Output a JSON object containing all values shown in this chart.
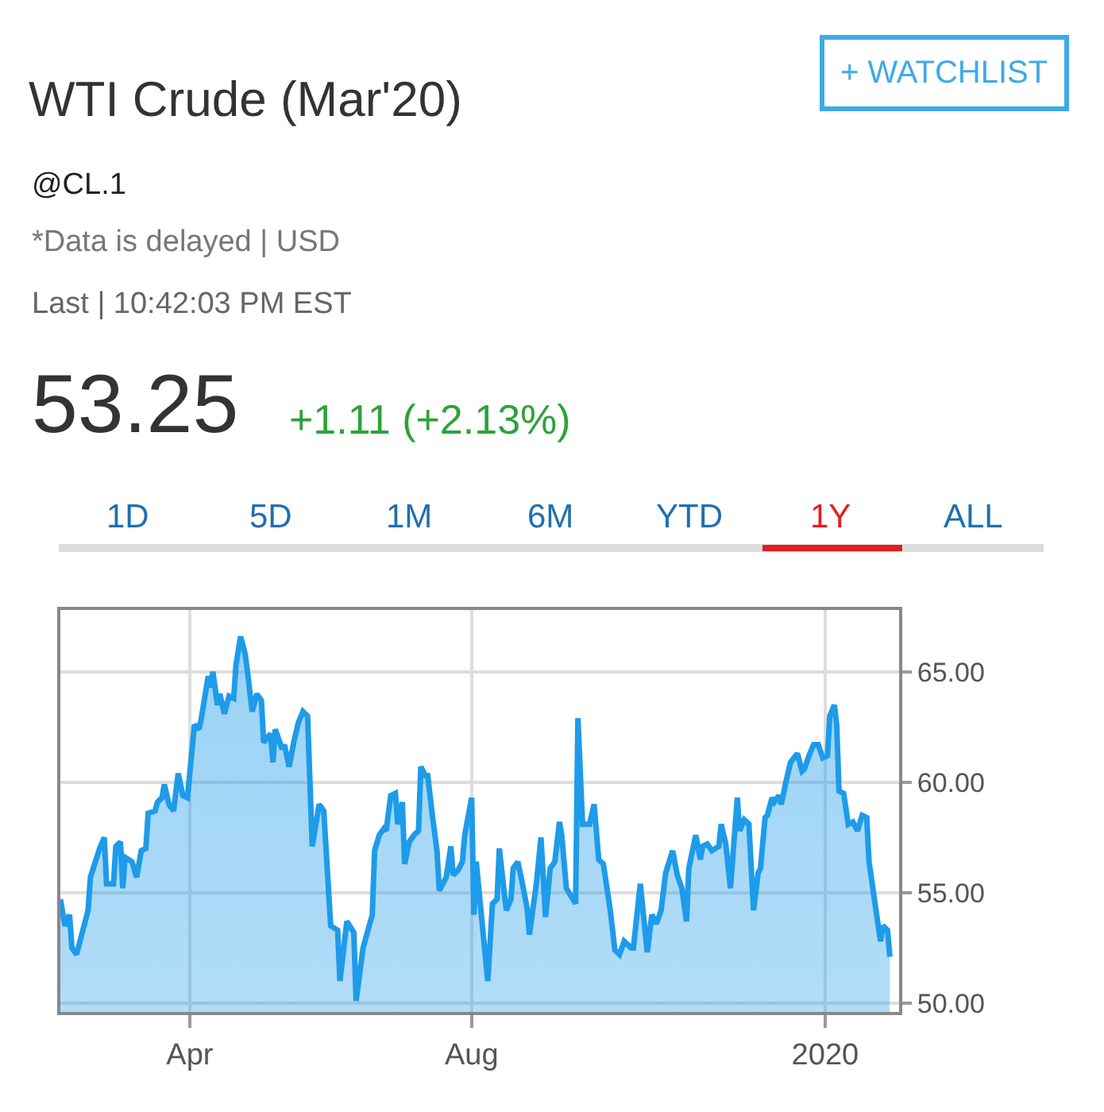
{
  "chart_data": {
    "type": "area",
    "title": "WTI Crude (Mar'20)",
    "annotations": [
      "+ WATCHLIST",
      "@CL.1",
      "*Data is delayed | USD",
      "Last | 10:42:03 PM EST",
      "53.25",
      "+1.11 (+2.13%)",
      "1D",
      "5D",
      "1M",
      "6M",
      "YTD",
      "1Y",
      "ALL"
    ],
    "x": [
      "2019-02-04",
      "2019-02-06",
      "2019-02-08",
      "2019-02-09",
      "2019-02-11",
      "2019-02-16",
      "2019-02-17",
      "2019-02-21",
      "2019-02-23",
      "2019-02-24",
      "2019-02-27",
      "2019-02-28",
      "2019-03-02",
      "2019-03-03",
      "2019-03-04",
      "2019-03-07",
      "2019-03-09",
      "2019-03-11",
      "2019-03-13",
      "2019-03-14",
      "2019-03-17",
      "2019-03-18",
      "2019-03-20",
      "2019-03-21",
      "2019-03-23",
      "2019-03-25",
      "2019-03-27",
      "2019-03-29",
      "2019-03-31",
      "2019-04-03",
      "2019-04-05",
      "2019-04-06",
      "2019-04-09",
      "2019-04-10",
      "2019-04-11",
      "2019-04-13",
      "2019-04-14",
      "2019-04-16",
      "2019-04-18",
      "2019-04-20",
      "2019-04-21",
      "2019-04-23",
      "2019-04-25",
      "2019-04-26",
      "2019-04-28",
      "2019-04-30",
      "2019-05-02",
      "2019-05-03",
      "2019-05-06",
      "2019-05-07",
      "2019-05-08",
      "2019-05-11",
      "2019-05-12",
      "2019-05-14",
      "2019-05-16",
      "2019-05-18",
      "2019-05-20",
      "2019-05-22",
      "2019-05-24",
      "2019-05-27",
      "2019-05-29",
      "2019-06-01",
      "2019-06-04",
      "2019-06-05",
      "2019-06-08",
      "2019-06-11",
      "2019-06-12",
      "2019-06-15",
      "2019-06-19",
      "2019-06-20",
      "2019-06-22",
      "2019-06-24",
      "2019-06-25",
      "2019-06-27",
      "2019-06-29",
      "2019-06-30",
      "2019-07-02",
      "2019-07-03",
      "2019-07-05",
      "2019-07-07",
      "2019-07-09",
      "2019-07-10",
      "2019-07-12",
      "2019-07-13",
      "2019-07-15",
      "2019-07-17",
      "2019-07-18",
      "2019-07-21",
      "2019-07-23",
      "2019-07-24",
      "2019-07-26",
      "2019-07-28",
      "2019-07-29",
      "2019-08-01",
      "2019-08-02",
      "2019-08-03",
      "2019-08-05",
      "2019-08-08",
      "2019-08-10",
      "2019-08-12",
      "2019-08-13",
      "2019-08-15",
      "2019-08-16",
      "2019-08-18",
      "2019-08-19",
      "2019-08-21",
      "2019-08-23",
      "2019-08-25",
      "2019-08-26",
      "2019-08-29",
      "2019-08-31",
      "2019-09-02",
      "2019-09-04",
      "2019-09-06",
      "2019-09-08",
      "2019-09-09",
      "2019-09-11",
      "2019-09-15",
      "2019-09-16",
      "2019-09-18",
      "2019-09-21",
      "2019-09-23",
      "2019-09-25",
      "2019-09-27",
      "2019-09-30",
      "2019-10-02",
      "2019-10-04",
      "2019-10-06",
      "2019-10-09",
      "2019-10-10",
      "2019-10-13",
      "2019-10-16",
      "2019-10-18",
      "2019-10-20",
      "2019-10-22",
      "2019-10-24",
      "2019-10-27",
      "2019-10-29",
      "2019-10-31",
      "2019-11-02",
      "2019-11-03",
      "2019-11-06",
      "2019-11-08",
      "2019-11-09",
      "2019-11-11",
      "2019-11-13",
      "2019-11-16",
      "2019-11-17",
      "2019-11-19",
      "2019-11-21",
      "2019-11-24",
      "2019-11-25",
      "2019-11-27",
      "2019-11-29",
      "2019-12-01",
      "2019-12-03",
      "2019-12-04",
      "2019-12-06",
      "2019-12-07",
      "2019-12-09",
      "2019-12-10",
      "2019-12-12",
      "2019-12-13",
      "2019-12-15",
      "2019-12-17",
      "2019-12-20",
      "2019-12-22",
      "2019-12-23",
      "2019-12-25",
      "2019-12-27",
      "2019-12-29",
      "2019-12-31",
      "2020-01-02",
      "2020-01-03",
      "2020-01-05",
      "2020-01-06",
      "2020-01-07",
      "2020-01-09",
      "2020-01-11",
      "2020-01-13",
      "2020-01-15",
      "2020-01-17",
      "2020-01-19",
      "2020-01-20",
      "2020-01-23",
      "2020-01-25",
      "2020-01-26",
      "2020-01-28",
      "2020-01-29"
    ],
    "series": [
      {
        "color": "#1e9be9",
        "values": [
          54.7,
          53.5,
          54.0,
          52.5,
          52.2,
          54.2,
          55.7,
          57.0,
          57.5,
          55.4,
          55.4,
          57.1,
          57.3,
          55.2,
          56.6,
          56.4,
          55.7,
          56.9,
          57.0,
          58.6,
          58.7,
          59.1,
          59.3,
          59.9,
          59.0,
          58.7,
          60.4,
          59.4,
          59.3,
          62.6,
          62.4,
          62.9,
          64.8,
          64.3,
          65.0,
          63.5,
          64.0,
          63.1,
          63.9,
          63.8,
          65.3,
          66.6,
          65.8,
          65.0,
          63.2,
          64.0,
          63.7,
          61.8,
          62.2,
          60.9,
          62.4,
          61.5,
          61.7,
          60.7,
          61.8,
          62.7,
          63.2,
          63.0,
          57.1,
          59.0,
          58.7,
          53.5,
          53.3,
          51.0,
          53.7,
          53.2,
          50.1,
          52.5,
          54.0,
          56.9,
          57.6,
          57.9,
          57.8,
          59.4,
          59.5,
          58.1,
          59.1,
          56.3,
          57.3,
          57.6,
          57.8,
          60.7,
          60.3,
          60.3,
          58.5,
          56.9,
          55.1,
          55.7,
          57.1,
          55.8,
          56.0,
          56.4,
          57.6,
          59.3,
          54.0,
          56.4,
          54.2,
          51.0,
          54.5,
          54.7,
          57.0,
          55.1,
          54.2,
          54.7,
          56.1,
          56.4,
          55.4,
          54.3,
          53.1,
          55.4,
          57.5,
          53.9,
          56.1,
          56.4,
          58.2,
          57.6,
          55.2,
          54.5,
          62.9,
          58.1,
          58.1,
          59.0,
          56.5,
          56.3,
          54.2,
          52.4,
          52.2,
          52.8,
          52.5,
          52.5,
          55.4,
          52.3,
          54.0,
          53.6,
          54.2,
          55.9,
          56.9,
          55.8,
          55.2,
          53.7,
          56.1,
          57.6,
          56.5,
          57.1,
          57.2,
          56.9,
          57.1,
          58.1,
          57.2,
          55.2,
          59.3,
          57.8,
          58.3,
          58.1,
          54.2,
          55.9,
          56.1,
          58.4,
          58.5,
          59.3,
          59.1,
          59.4,
          59.0,
          60.0,
          60.9,
          61.3,
          60.5,
          60.6,
          61.2,
          61.7,
          61.7,
          61.1,
          61.2,
          63.0,
          63.5,
          62.6,
          59.6,
          59.5,
          58.1,
          58.2,
          57.8,
          58.5,
          58.4,
          56.4,
          54.2,
          52.8,
          53.5,
          53.3,
          52.1
        ]
      }
    ],
    "xlim": [
      "2019-02-04",
      "2020-02-02"
    ],
    "xticks": [
      {
        "value": "2019-04-01",
        "label": "Apr"
      },
      {
        "value": "2019-08-01",
        "label": "Aug"
      },
      {
        "value": "2020-01-01",
        "label": "2020"
      }
    ],
    "ylim": [
      49.6,
      67.8
    ],
    "yticks": [
      {
        "value": 50,
        "label": "50.00"
      },
      {
        "value": 55,
        "label": "55.00"
      },
      {
        "value": 60,
        "label": "60.00"
      },
      {
        "value": 65,
        "label": "65.00"
      }
    ],
    "grid": true
  }
}
